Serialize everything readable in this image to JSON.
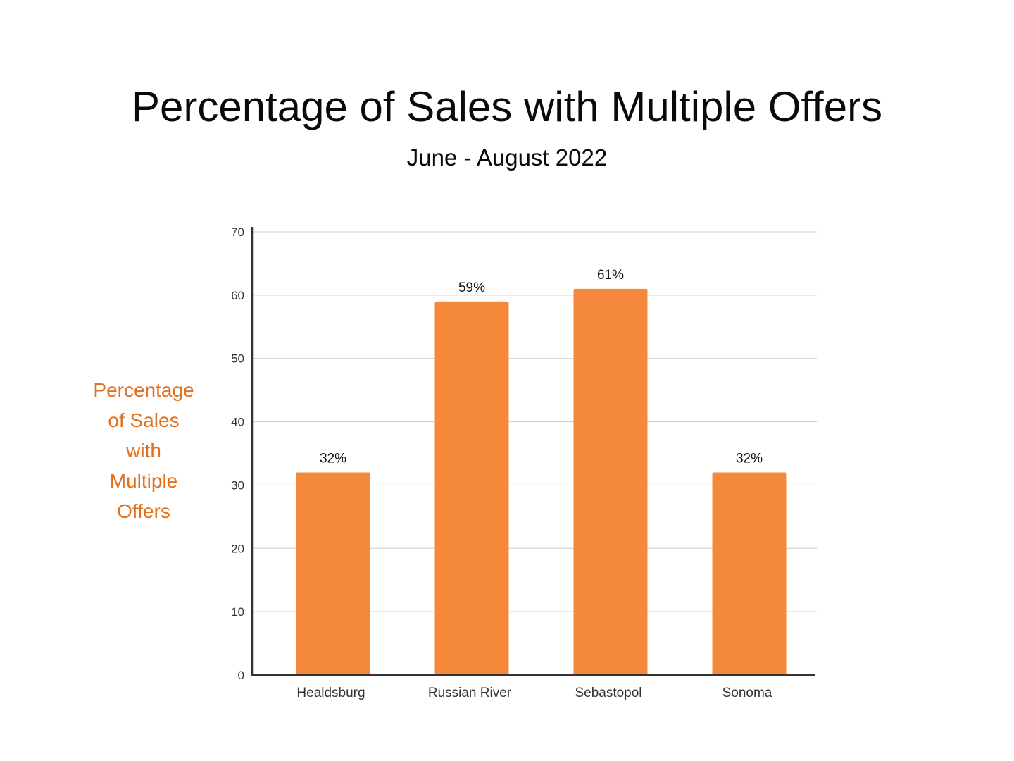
{
  "colors": {
    "bar": "#F4893B",
    "ylabel": "#E2701F",
    "grid": "#CCCCCC",
    "axis": "#333333"
  },
  "chart_data": {
    "type": "bar",
    "title": "Percentage of Sales with Multiple Offers",
    "subtitle": "June - August 2022",
    "xlabel": "",
    "ylabel_lines": [
      "Percentage",
      "of Sales",
      "with",
      "Multiple",
      "Offers"
    ],
    "categories": [
      "Healdsburg",
      "Russian River",
      "Sebastopol",
      "Sonoma"
    ],
    "values": [
      32,
      59,
      61,
      32
    ],
    "data_labels": [
      "32%",
      "59%",
      "61%",
      "32%"
    ],
    "ylim": [
      0,
      70
    ],
    "yticks": [
      "0",
      "10",
      "20",
      "30",
      "40",
      "50",
      "60",
      "70"
    ],
    "grid": true,
    "legend": "none"
  }
}
